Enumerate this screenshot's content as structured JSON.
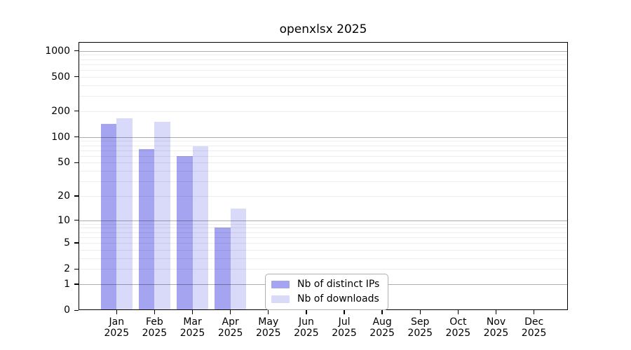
{
  "chart_data": {
    "type": "bar",
    "title": "openxlsx 2025",
    "categories": [
      "Jan",
      "Feb",
      "Mar",
      "Apr",
      "May",
      "Jun",
      "Jul",
      "Aug",
      "Sep",
      "Oct",
      "Nov",
      "Dec"
    ],
    "x_year_label": "2025",
    "series": [
      {
        "name": "Nb of distinct IPs",
        "color": "#a4a4f0",
        "values": [
          143,
          72,
          60,
          8,
          0,
          0,
          0,
          0,
          0,
          0,
          0,
          0
        ]
      },
      {
        "name": "Nb of downloads",
        "color": "#d9d9f9",
        "values": [
          165,
          149,
          78,
          14,
          0,
          0,
          0,
          0,
          0,
          0,
          0,
          0
        ]
      }
    ],
    "y_ticks": [
      0,
      1,
      2,
      5,
      10,
      20,
      50,
      100,
      200,
      500,
      1000
    ],
    "y_tick_labels": [
      "0",
      "1",
      "2",
      "5",
      "10",
      "20",
      "50",
      "100",
      "200",
      "500",
      "1000"
    ],
    "y_scale": "log10(value+1)",
    "ylim": [
      0,
      1260
    ],
    "grid": true,
    "legend_position": "lower-center",
    "axis_color": "#000000",
    "major_grid_color": "#adadad",
    "minor_grid_color": "#ececec",
    "background": "#ffffff"
  }
}
